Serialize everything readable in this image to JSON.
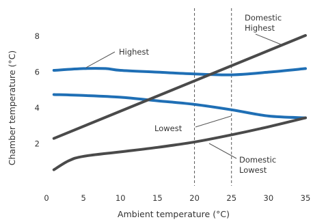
{
  "chart_data": {
    "type": "line",
    "xlabel": "Ambient temperature (°C)",
    "ylabel": "Chamber temperature (°C)",
    "xlim": [
      0,
      35
    ],
    "ylim": [
      0,
      9
    ],
    "xticks": [
      0,
      5,
      10,
      15,
      20,
      25,
      30,
      35
    ],
    "yticks": [
      2,
      4,
      6,
      8
    ],
    "reference_lines_x": [
      20,
      25
    ],
    "grid": false,
    "series": [
      {
        "label": "Highest",
        "color": "#1f6fb5",
        "x": [
          1,
          5,
          8,
          10,
          15,
          20,
          25,
          30,
          35
        ],
        "y": [
          6.1,
          6.2,
          6.2,
          6.1,
          6.0,
          5.9,
          5.85,
          6.0,
          6.2
        ]
      },
      {
        "label": "Lowest",
        "color": "#1f6fb5",
        "x": [
          1,
          5,
          10,
          15,
          20,
          25,
          30,
          35
        ],
        "y": [
          4.75,
          4.7,
          4.6,
          4.4,
          4.2,
          3.9,
          3.55,
          3.45
        ]
      },
      {
        "label": "Domestic Highest",
        "color": "#4a4a4a",
        "x": [
          1,
          35
        ],
        "y": [
          2.3,
          8.05
        ]
      },
      {
        "label": "Domestic Lowest",
        "color": "#4a4a4a",
        "x": [
          1,
          3,
          5,
          10,
          15,
          20,
          25,
          30,
          35
        ],
        "y": [
          0.55,
          1.05,
          1.3,
          1.55,
          1.8,
          2.1,
          2.5,
          2.95,
          3.45
        ]
      }
    ],
    "annotations": [
      {
        "lines": [
          "Highest"
        ],
        "series": 0
      },
      {
        "lines": [
          "Lowest"
        ],
        "series": 1
      },
      {
        "lines": [
          "Domestic",
          "Highest"
        ],
        "series": 2
      },
      {
        "lines": [
          "Domestic",
          "Lowest"
        ],
        "series": 3
      }
    ]
  }
}
